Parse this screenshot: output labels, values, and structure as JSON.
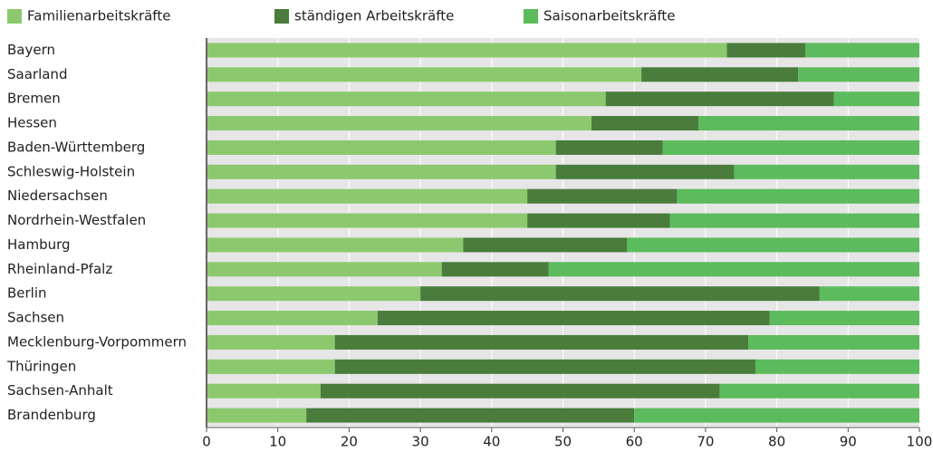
{
  "chart_data": {
    "type": "stacked-bar-horizontal",
    "categories": [
      "Bayern",
      "Saarland",
      "Bremen",
      "Hessen",
      "Baden-Württemberg",
      "Schleswig-Holstein",
      "Niedersachsen",
      "Nordrhein-Westfalen",
      "Hamburg",
      "Rheinland-Pfalz",
      "Berlin",
      "Sachsen",
      "Mecklenburg-Vorpommern",
      "Thüringen",
      "Sachsen-Anhalt",
      "Brandenburg"
    ],
    "series": [
      {
        "name": "Familienarbeitskräfte",
        "color": "#8cc96e",
        "values": [
          73,
          61,
          56,
          54,
          49,
          49,
          45,
          45,
          36,
          33,
          30,
          24,
          18,
          18,
          16,
          14
        ]
      },
      {
        "name": "ständigen Arbeitskräfte",
        "color": "#4a7c3c",
        "values": [
          11,
          22,
          32,
          15,
          15,
          25,
          21,
          20,
          23,
          15,
          56,
          55,
          58,
          59,
          56,
          46
        ]
      },
      {
        "name": "Saisonarbeitskräfte",
        "color": "#5cbb5c",
        "values": [
          16,
          17,
          12,
          31,
          36,
          26,
          34,
          35,
          41,
          52,
          14,
          21,
          24,
          23,
          28,
          40
        ]
      }
    ],
    "xlim": [
      0,
      100
    ],
    "xticks": [
      0,
      10,
      20,
      30,
      40,
      50,
      60,
      70,
      80,
      90,
      100
    ],
    "grid": true
  }
}
